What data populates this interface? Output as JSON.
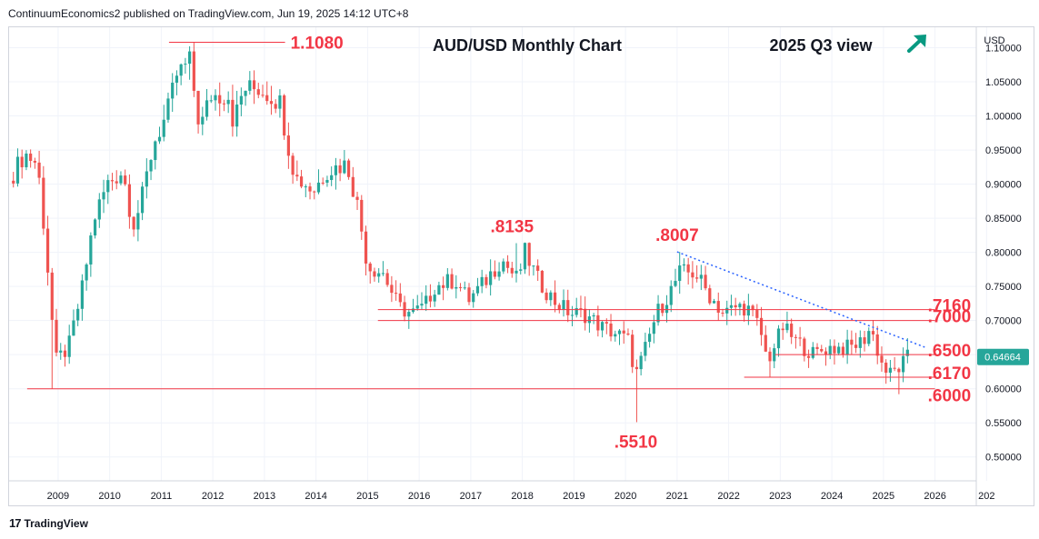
{
  "publisher": "ContinuumEconomics2 published on TradingView.com, Jun 19, 2025 14:12 UTC+8",
  "brand": "TradingView",
  "colors": {
    "up": "#26a69a",
    "down": "#ef5350",
    "level": "#f23645",
    "trend": "#2962ff",
    "arrow": "#089981"
  },
  "chart_data": {
    "type": "candlestick",
    "title": "AUD/USD Monthly Chart",
    "subtitle": "2025 Q3 view",
    "outlook_icon": "arrow-up-right-icon",
    "currency": "USD",
    "last_price": "0.64664",
    "x_ticks": [
      "2009",
      "2010",
      "2011",
      "2012",
      "2013",
      "2014",
      "2015",
      "2016",
      "2017",
      "2018",
      "2019",
      "2020",
      "2021",
      "2022",
      "2023",
      "2024",
      "2025",
      "2026",
      "202"
    ],
    "y_ticks": [
      "0.50000",
      "0.55000",
      "0.60000",
      "0.65000",
      "0.70000",
      "0.75000",
      "0.80000",
      "0.85000",
      "0.90000",
      "0.95000",
      "1.00000",
      "1.05000",
      "1.10000"
    ],
    "ylim": [
      0.465,
      1.13
    ],
    "xlim": [
      2008.05,
      2026.8
    ],
    "levels": [
      {
        "label": "1.1080",
        "value": 1.108,
        "x_start": 2011.15,
        "x_end": 2013.4
      },
      {
        "label": ".7160",
        "value": 0.716,
        "x_start": 2015.2,
        "x_end": 2026.0
      },
      {
        "label": ".7000",
        "value": 0.7,
        "x_start": 2015.2,
        "x_end": 2026.0
      },
      {
        "label": ".6500",
        "value": 0.65,
        "x_start": 2022.9,
        "x_end": 2026.0
      },
      {
        "label": ".6170",
        "value": 0.617,
        "x_start": 2022.3,
        "x_end": 2026.0
      },
      {
        "label": ".6000",
        "value": 0.6,
        "x_start": 2008.4,
        "x_end": 2026.0
      }
    ],
    "annotations": [
      {
        "label": ".8135",
        "x": 2017.8,
        "y": 0.8135
      },
      {
        "label": ".8007",
        "x": 2021.0,
        "y": 0.8007
      },
      {
        "label": ".5510",
        "x": 2020.2,
        "y": 0.551
      }
    ],
    "trendline": {
      "from": [
        2021.0,
        0.8007
      ],
      "to": [
        2025.8,
        0.661
      ]
    },
    "waypoints": [
      [
        2008.05,
        0.905
      ],
      [
        2008.35,
        0.945
      ],
      [
        2008.6,
        0.93
      ],
      [
        2008.75,
        0.82
      ],
      [
        2008.95,
        0.64
      ],
      [
        2009.2,
        0.66
      ],
      [
        2009.45,
        0.74
      ],
      [
        2009.7,
        0.85
      ],
      [
        2009.95,
        0.9
      ],
      [
        2010.25,
        0.92
      ],
      [
        2010.45,
        0.84
      ],
      [
        2010.6,
        0.87
      ],
      [
        2010.85,
        0.96
      ],
      [
        2011.1,
        1.0
      ],
      [
        2011.3,
        1.06
      ],
      [
        2011.55,
        1.08
      ],
      [
        2011.75,
        0.98
      ],
      [
        2011.95,
        1.03
      ],
      [
        2012.3,
        1.03
      ],
      [
        2012.4,
        0.99
      ],
      [
        2012.6,
        1.04
      ],
      [
        2012.9,
        1.04
      ],
      [
        2013.3,
        1.02
      ],
      [
        2013.45,
        0.96
      ],
      [
        2013.6,
        0.91
      ],
      [
        2013.8,
        0.9
      ],
      [
        2013.95,
        0.89
      ],
      [
        2014.2,
        0.92
      ],
      [
        2014.6,
        0.93
      ],
      [
        2014.8,
        0.87
      ],
      [
        2015.0,
        0.78
      ],
      [
        2015.3,
        0.77
      ],
      [
        2015.6,
        0.72
      ],
      [
        2015.85,
        0.71
      ],
      [
        2016.1,
        0.72
      ],
      [
        2016.3,
        0.75
      ],
      [
        2016.7,
        0.76
      ],
      [
        2016.95,
        0.73
      ],
      [
        2017.2,
        0.75
      ],
      [
        2017.6,
        0.79
      ],
      [
        2017.9,
        0.76
      ],
      [
        2018.05,
        0.8
      ],
      [
        2018.3,
        0.76
      ],
      [
        2018.6,
        0.73
      ],
      [
        2018.95,
        0.71
      ],
      [
        2019.2,
        0.71
      ],
      [
        2019.55,
        0.69
      ],
      [
        2019.85,
        0.68
      ],
      [
        2020.05,
        0.67
      ],
      [
        2020.2,
        0.62
      ],
      [
        2020.35,
        0.65
      ],
      [
        2020.6,
        0.71
      ],
      [
        2020.85,
        0.74
      ],
      [
        2021.05,
        0.77
      ],
      [
        2021.35,
        0.77
      ],
      [
        2021.6,
        0.74
      ],
      [
        2021.9,
        0.71
      ],
      [
        2022.15,
        0.72
      ],
      [
        2022.35,
        0.72
      ],
      [
        2022.6,
        0.69
      ],
      [
        2022.75,
        0.64
      ],
      [
        2023.05,
        0.69
      ],
      [
        2023.3,
        0.67
      ],
      [
        2023.65,
        0.65
      ],
      [
        2023.9,
        0.66
      ],
      [
        2024.1,
        0.66
      ],
      [
        2024.35,
        0.66
      ],
      [
        2024.6,
        0.67
      ],
      [
        2024.75,
        0.69
      ],
      [
        2024.95,
        0.64
      ],
      [
        2025.1,
        0.62
      ],
      [
        2025.3,
        0.63
      ],
      [
        2025.45,
        0.645
      ],
      [
        2025.5,
        0.6466
      ]
    ],
    "markers": [
      [
        2008.85,
        0.6
      ],
      [
        2011.6,
        1.108
      ],
      [
        2017.85,
        0.8135
      ],
      [
        2020.2,
        0.551
      ],
      [
        2021.05,
        0.8007
      ],
      [
        2022.8,
        0.617
      ],
      [
        2024.75,
        0.69
      ],
      [
        2025.3,
        0.592
      ]
    ]
  }
}
